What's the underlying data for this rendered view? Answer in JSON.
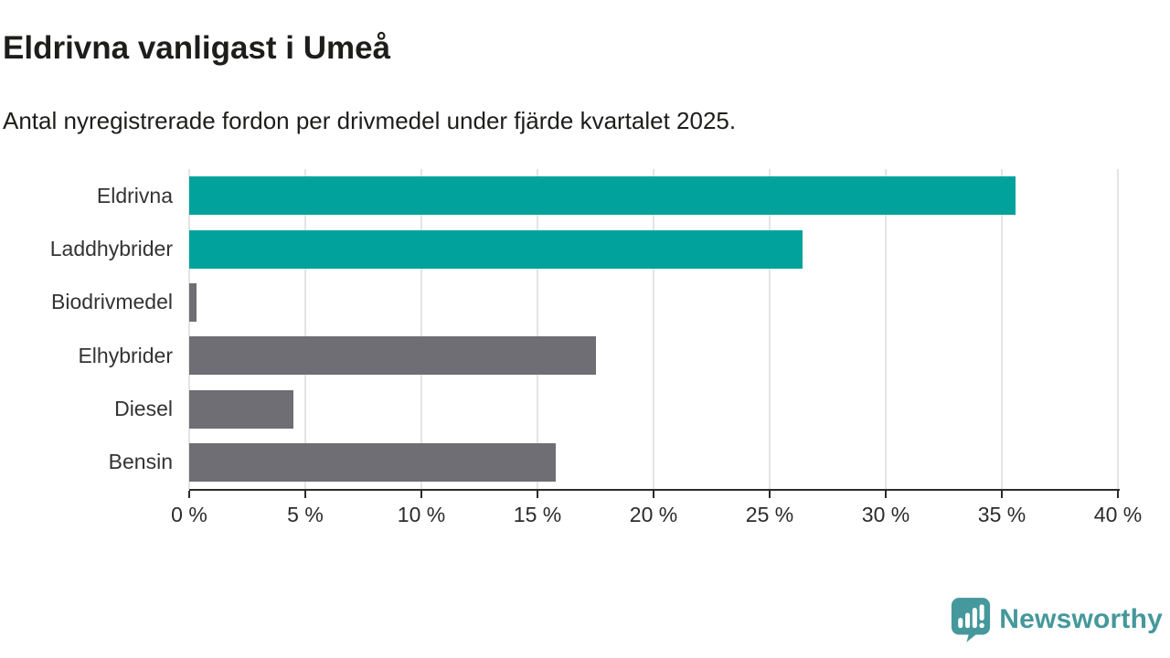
{
  "chart_data": {
    "type": "bar",
    "orientation": "horizontal",
    "title": "Eldrivna vanligast i Umeå",
    "subtitle": "Antal nyregistrerade fordon per drivmedel under fjärde kvartalet 2025.",
    "categories": [
      "Eldrivna",
      "Laddhybrider",
      "Biodrivmedel",
      "Elhybrider",
      "Diesel",
      "Bensin"
    ],
    "values": [
      35.6,
      26.4,
      0.3,
      17.5,
      4.5,
      15.8
    ],
    "unit": "%",
    "xlim": [
      0,
      40
    ],
    "x_tick_step": 5,
    "x_tick_labels": [
      "0 %",
      "5 %",
      "10 %",
      "15 %",
      "20 %",
      "25 %",
      "30 %",
      "35 %",
      "40 %"
    ],
    "xlabel": "",
    "ylabel": "",
    "grid": "vertical-gridlines",
    "legend": "none",
    "colors": {
      "highlight": "#00a29b",
      "default": "#6e6e74",
      "gridline": "#e4e4e4",
      "axis": "#2b2b2b"
    },
    "bar_color_roles": [
      "highlight",
      "highlight",
      "default",
      "default",
      "default",
      "default"
    ]
  },
  "brand": {
    "name": "Newsworthy",
    "color": "#45989b",
    "icon": "newsworthy-speech-bubble-bar-chart-icon"
  }
}
